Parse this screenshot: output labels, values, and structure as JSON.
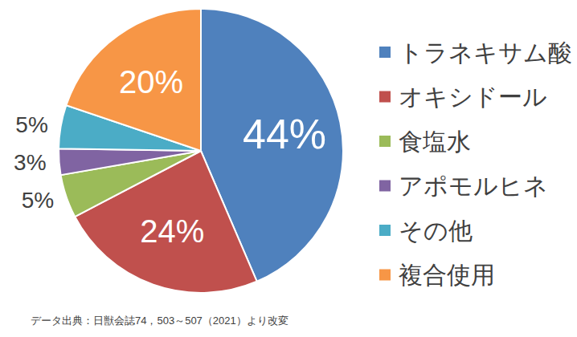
{
  "chart_data": {
    "type": "pie",
    "categories": [
      "トラネキサム酸",
      "オキシドール",
      "食塩水",
      "アポモルヒネ",
      "その他",
      "複合使用"
    ],
    "values": [
      44,
      24,
      5,
      3,
      5,
      20
    ],
    "value_labels": [
      "44%",
      "24%",
      "5%",
      "3%",
      "5%",
      "20%"
    ],
    "colors": [
      "#4f81bd",
      "#c0504d",
      "#9bbb59",
      "#8064a2",
      "#4bacc6",
      "#f79646"
    ],
    "data_labels": true,
    "legend": "right",
    "annotations": [
      "データ出典：日獣会誌74，503～507（2021）より改変"
    ]
  }
}
